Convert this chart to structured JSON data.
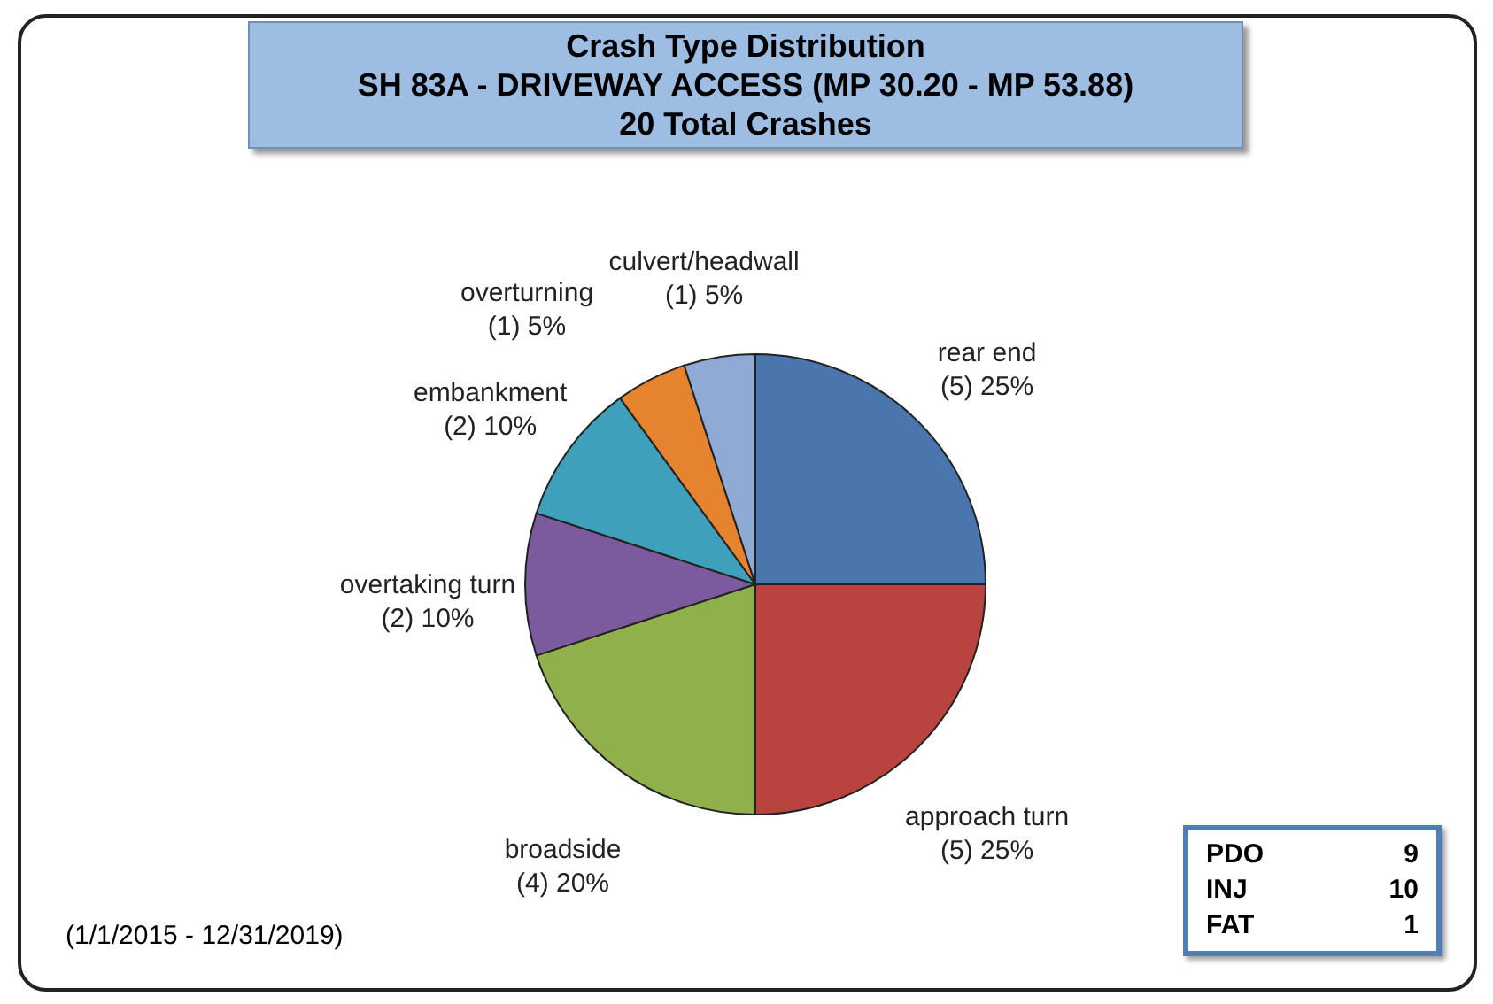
{
  "chart_data": {
    "type": "pie",
    "title": "Crash Type Distribution",
    "subtitle": "SH 83A - DRIVEWAY ACCESS (MP 30.20 - MP 53.88)",
    "categories": [
      "rear end",
      "approach turn",
      "broadside",
      "overtaking turn",
      "embankment",
      "overturning",
      "culvert/headwall"
    ],
    "values": [
      5,
      5,
      4,
      2,
      2,
      1,
      1
    ],
    "value_labels": [
      "(5) 25%",
      "(5) 25%",
      "(4) 20%",
      "(2) 10%",
      "(2) 10%",
      "(1) 5%",
      "(1) 5%"
    ],
    "colors": [
      "#4a76ad",
      "#b9443f",
      "#8fb04a",
      "#7b5a9e",
      "#3ea0ba",
      "#e5832f",
      "#8eaad5"
    ],
    "legend": false,
    "annotations": [
      "20 Total Crashes",
      "(1/1/2015 - 12/31/2019)",
      "PDO 9",
      "INJ 10",
      "FAT 1"
    ]
  }
}
